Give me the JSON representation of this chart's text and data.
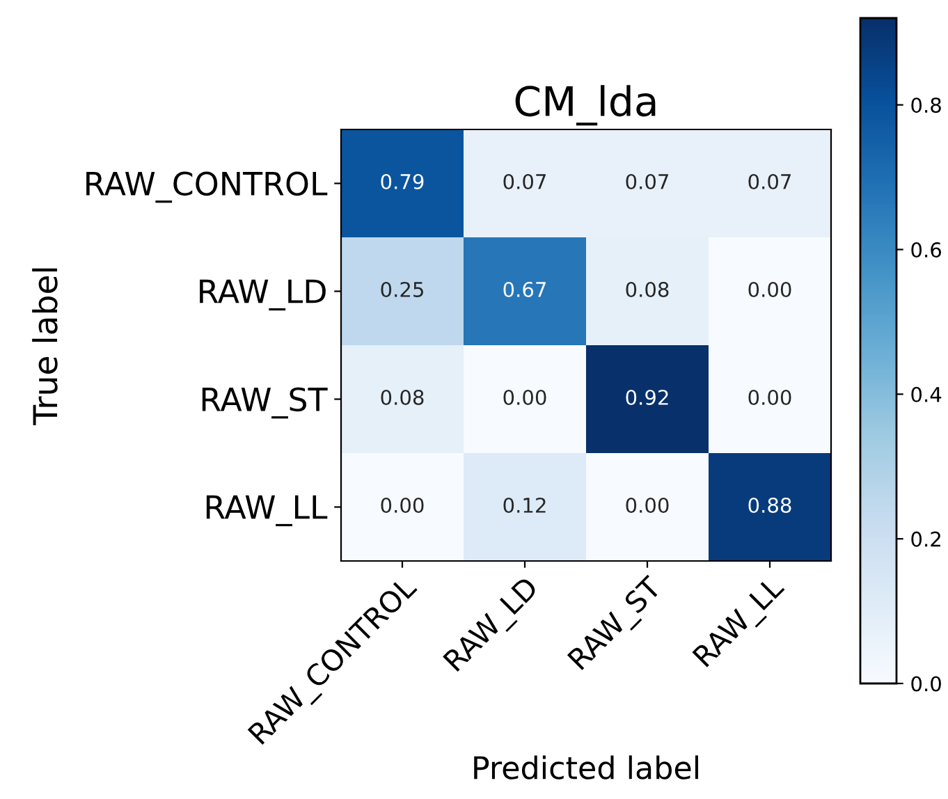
{
  "chart_data": {
    "type": "heatmap",
    "title": "CM_lda",
    "xlabel": "Predicted label",
    "ylabel": "True label",
    "categories": [
      "RAW_CONTROL",
      "RAW_LD",
      "RAW_ST",
      "RAW_LL"
    ],
    "y_categories": [
      "RAW_CONTROL",
      "RAW_LD",
      "RAW_ST",
      "RAW_LL"
    ],
    "cells": [
      [
        0.79,
        0.07,
        0.07,
        0.07
      ],
      [
        0.25,
        0.67,
        0.08,
        0.0
      ],
      [
        0.08,
        0.0,
        0.92,
        0.0
      ],
      [
        0.0,
        0.12,
        0.0,
        0.88
      ]
    ],
    "cell_labels": [
      [
        "0.79",
        "0.07",
        "0.07",
        "0.07"
      ],
      [
        "0.25",
        "0.67",
        "0.08",
        "0.00"
      ],
      [
        "0.08",
        "0.00",
        "0.92",
        "0.00"
      ],
      [
        "0.00",
        "0.12",
        "0.00",
        "0.88"
      ]
    ],
    "clim": [
      0,
      0.92
    ],
    "cticks": [
      {
        "value": 0,
        "label": "0.0"
      },
      {
        "value": 0.2,
        "label": "0.2"
      },
      {
        "value": 0.4,
        "label": "0.4"
      },
      {
        "value": 0.6,
        "label": "0.6"
      },
      {
        "value": 0.8,
        "label": "0.8"
      }
    ]
  }
}
